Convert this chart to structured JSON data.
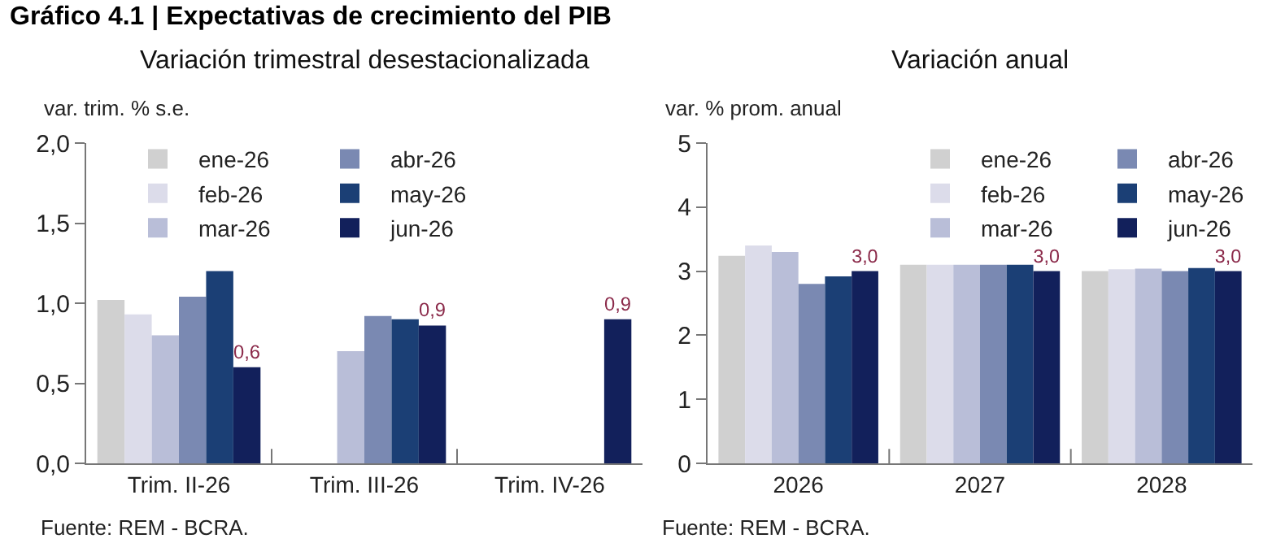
{
  "chart_data": [
    {
      "type": "bar",
      "title": "Gráfico 4.1 | Expectativas de crecimiento del PIB",
      "subtitle": "Variación trimestral desestacionalizada",
      "ylabel": "var. trim. % s.e.",
      "categories": [
        "Trim. II-26",
        "Trim. III-26",
        "Trim. IV-26"
      ],
      "series": [
        {
          "name": "ene-26",
          "color": "#d0d0d0",
          "values": [
            1.02,
            null,
            null
          ]
        },
        {
          "name": "feb-26",
          "color": "#dcdcea",
          "values": [
            0.93,
            null,
            null
          ]
        },
        {
          "name": "mar-26",
          "color": "#b9bed8",
          "values": [
            0.8,
            0.7,
            null
          ]
        },
        {
          "name": "abr-26",
          "color": "#7a89b2",
          "values": [
            1.04,
            0.92,
            null
          ]
        },
        {
          "name": "may-26",
          "color": "#1b3f75",
          "values": [
            1.2,
            0.9,
            null
          ]
        },
        {
          "name": "jun-26",
          "color": "#12205b",
          "values": [
            0.6,
            0.86,
            0.9
          ],
          "value_labels": [
            "0,6",
            "0,9",
            "0,9"
          ]
        }
      ],
      "ylim": [
        0,
        2
      ],
      "yticks": [
        {
          "value": 0,
          "label": "0,0"
        },
        {
          "value": 0.5,
          "label": "0,5"
        },
        {
          "value": 1,
          "label": "1,0"
        },
        {
          "value": 1.5,
          "label": "1,5"
        },
        {
          "value": 2,
          "label": "2,0"
        }
      ],
      "legend": "top",
      "annotations": [
        "Fuente: REM - BCRA."
      ]
    },
    {
      "type": "bar",
      "title": "Variación anual",
      "ylabel": "var. % prom. anual",
      "categories": [
        "2026",
        "2027",
        "2028"
      ],
      "series": [
        {
          "name": "ene-26",
          "color": "#d0d0d0",
          "values": [
            3.24,
            3.1,
            3.0
          ]
        },
        {
          "name": "feb-26",
          "color": "#dcdcea",
          "values": [
            3.4,
            3.1,
            3.03
          ]
        },
        {
          "name": "mar-26",
          "color": "#b9bed8",
          "values": [
            3.3,
            3.1,
            3.04
          ]
        },
        {
          "name": "abr-26",
          "color": "#7a89b2",
          "values": [
            2.8,
            3.1,
            3.0
          ]
        },
        {
          "name": "may-26",
          "color": "#1b3f75",
          "values": [
            2.92,
            3.1,
            3.05
          ]
        },
        {
          "name": "jun-26",
          "color": "#12205b",
          "values": [
            3.0,
            3.0,
            3.0
          ],
          "value_labels": [
            "3,0",
            "3,0",
            "3,0"
          ]
        }
      ],
      "ylim": [
        0,
        5
      ],
      "yticks": [
        0,
        1,
        2,
        3,
        4,
        5
      ],
      "legend": "top",
      "annotations": [
        "Fuente: REM - BCRA."
      ]
    }
  ]
}
